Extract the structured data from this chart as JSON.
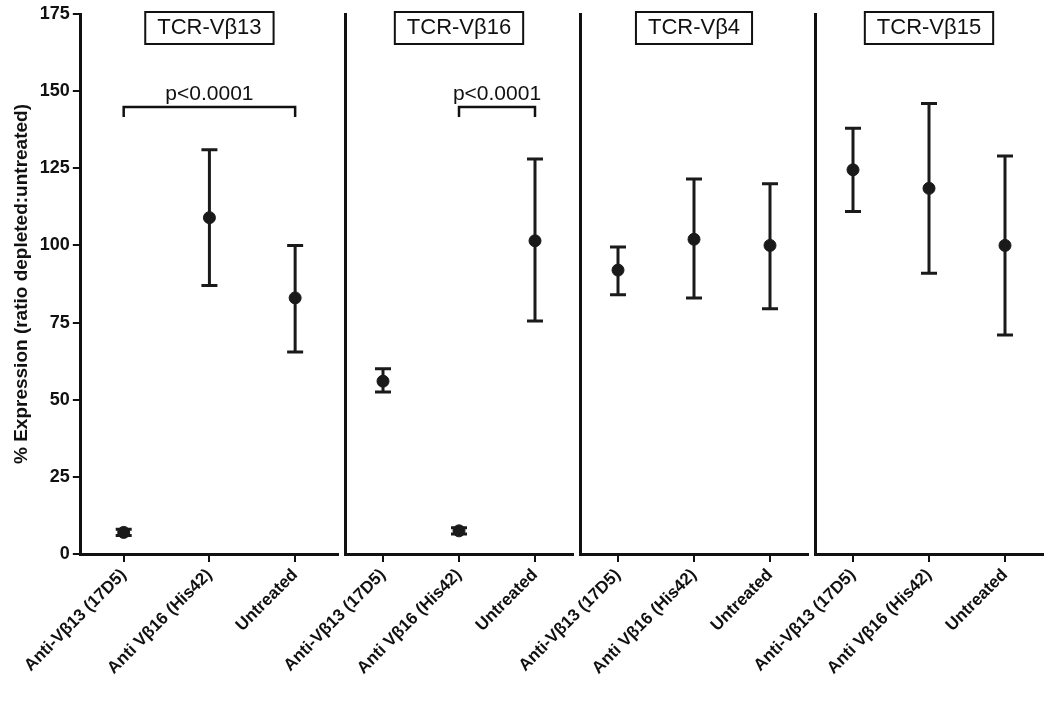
{
  "chart_data": [
    {
      "type": "scatter",
      "title": "TCR-Vβ13",
      "ylabel": "% Expression (ratio depleted:untreated)",
      "categories": [
        "Anti-Vβ13 (17D5)",
        "Anti Vβ16 (His42)",
        "Untreated"
      ],
      "values": [
        7,
        109,
        83
      ],
      "errors": [
        [
          6,
          8
        ],
        [
          87,
          131
        ],
        [
          65.5,
          100
        ]
      ],
      "color": "#1a1a1a",
      "marker": "circle",
      "ylim": [
        0,
        175
      ],
      "yticks": [
        0,
        25,
        50,
        75,
        100,
        125,
        150,
        175
      ],
      "annotations": [
        "p<0.0001"
      ]
    },
    {
      "type": "scatter",
      "title": "TCR-Vβ16",
      "categories": [
        "Anti-Vβ13 (17D5)",
        "Anti Vβ16 (His42)",
        "Untreated"
      ],
      "values": [
        56,
        7.5,
        101.5
      ],
      "errors": [
        [
          52.5,
          60
        ],
        [
          6.5,
          8.5
        ],
        [
          75.5,
          128
        ]
      ],
      "color": "#1a1a1a",
      "marker": "circle",
      "ylim": [
        0,
        175
      ],
      "tick_labels": "x",
      "annotations": [
        "p<0.0001"
      ]
    },
    {
      "type": "scatter",
      "title": "TCR-Vβ4",
      "categories": [
        "Anti-Vβ13 (17D5)",
        "Anti Vβ16 (His42)",
        "Untreated"
      ],
      "values": [
        92,
        102,
        100
      ],
      "errors": [
        [
          84,
          99.5
        ],
        [
          83,
          121.5
        ],
        [
          79.5,
          120
        ]
      ],
      "color": "#1a1a1a",
      "marker": "circle",
      "ylim": [
        0,
        175
      ],
      "tick_labels": "x"
    },
    {
      "type": "scatter",
      "title": "TCR-Vβ15",
      "categories": [
        "Anti-Vβ13 (17D5)",
        "Anti Vβ16 (His42)",
        "Untreated"
      ],
      "values": [
        124.5,
        118.5,
        100
      ],
      "errors": [
        [
          111,
          138
        ],
        [
          91,
          146
        ],
        [
          71,
          129
        ]
      ],
      "color": "#1a1a1a",
      "marker": "circle",
      "ylim": [
        0,
        175
      ],
      "tick_labels": "x"
    }
  ]
}
